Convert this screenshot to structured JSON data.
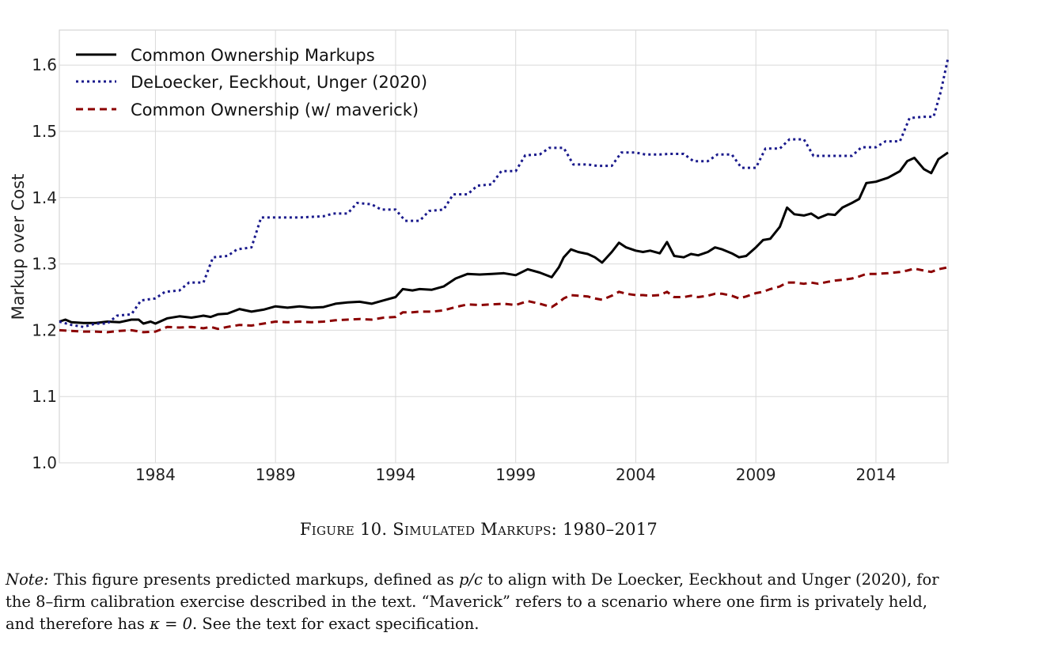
{
  "chart_data": {
    "type": "line",
    "title": "",
    "xlabel": "",
    "ylabel": "Markup over Cost",
    "xlim": [
      1980,
      2017
    ],
    "ylim": [
      1.0,
      1.63
    ],
    "x_ticks": [
      "1984",
      "1989",
      "1994",
      "1999",
      "2004",
      "2009",
      "2014"
    ],
    "y_ticks": [
      "1.0",
      "1.1",
      "1.2",
      "1.3",
      "1.4",
      "1.5",
      "1.6"
    ],
    "grid": true,
    "legend_position": "top-left",
    "series": [
      {
        "name": "Common Ownership Markups",
        "color": "#000000",
        "style": "solid",
        "points": [
          [
            1980,
            1.213
          ],
          [
            1980.25,
            1.216
          ],
          [
            1980.5,
            1.212
          ],
          [
            1981,
            1.211
          ],
          [
            1981.5,
            1.211
          ],
          [
            1982,
            1.213
          ],
          [
            1982.5,
            1.212
          ],
          [
            1983,
            1.216
          ],
          [
            1983.3,
            1.216
          ],
          [
            1983.5,
            1.21
          ],
          [
            1983.8,
            1.213
          ],
          [
            1984,
            1.21
          ],
          [
            1984.5,
            1.218
          ],
          [
            1985,
            1.221
          ],
          [
            1985.5,
            1.219
          ],
          [
            1986,
            1.222
          ],
          [
            1986.3,
            1.22
          ],
          [
            1986.6,
            1.224
          ],
          [
            1987,
            1.225
          ],
          [
            1987.5,
            1.232
          ],
          [
            1988,
            1.228
          ],
          [
            1988.5,
            1.231
          ],
          [
            1989,
            1.236
          ],
          [
            1989.5,
            1.234
          ],
          [
            1990,
            1.236
          ],
          [
            1990.5,
            1.234
          ],
          [
            1991,
            1.235
          ],
          [
            1991.5,
            1.24
          ],
          [
            1992,
            1.242
          ],
          [
            1992.5,
            1.243
          ],
          [
            1993,
            1.24
          ],
          [
            1993.5,
            1.245
          ],
          [
            1994,
            1.25
          ],
          [
            1994.3,
            1.262
          ],
          [
            1994.7,
            1.26
          ],
          [
            1995,
            1.262
          ],
          [
            1995.5,
            1.261
          ],
          [
            1996,
            1.266
          ],
          [
            1996.5,
            1.278
          ],
          [
            1997,
            1.285
          ],
          [
            1997.5,
            1.284
          ],
          [
            1998,
            1.285
          ],
          [
            1998.5,
            1.286
          ],
          [
            1999,
            1.283
          ],
          [
            1999.5,
            1.292
          ],
          [
            2000,
            1.287
          ],
          [
            2000.5,
            1.28
          ],
          [
            2000.8,
            1.295
          ],
          [
            2001,
            1.31
          ],
          [
            2001.3,
            1.322
          ],
          [
            2001.6,
            1.318
          ],
          [
            2002,
            1.315
          ],
          [
            2002.3,
            1.31
          ],
          [
            2002.6,
            1.302
          ],
          [
            2003,
            1.318
          ],
          [
            2003.3,
            1.332
          ],
          [
            2003.6,
            1.325
          ],
          [
            2004,
            1.32
          ],
          [
            2004.3,
            1.318
          ],
          [
            2004.6,
            1.32
          ],
          [
            2005,
            1.316
          ],
          [
            2005.3,
            1.333
          ],
          [
            2005.6,
            1.312
          ],
          [
            2006,
            1.31
          ],
          [
            2006.3,
            1.315
          ],
          [
            2006.6,
            1.313
          ],
          [
            2007,
            1.318
          ],
          [
            2007.3,
            1.325
          ],
          [
            2007.6,
            1.322
          ],
          [
            2008,
            1.316
          ],
          [
            2008.3,
            1.31
          ],
          [
            2008.6,
            1.312
          ],
          [
            2009,
            1.325
          ],
          [
            2009.3,
            1.336
          ],
          [
            2009.6,
            1.338
          ],
          [
            2010,
            1.356
          ],
          [
            2010.3,
            1.385
          ],
          [
            2010.6,
            1.375
          ],
          [
            2011,
            1.373
          ],
          [
            2011.3,
            1.376
          ],
          [
            2011.6,
            1.369
          ],
          [
            2012,
            1.375
          ],
          [
            2012.3,
            1.374
          ],
          [
            2012.6,
            1.385
          ],
          [
            2013,
            1.392
          ],
          [
            2013.3,
            1.398
          ],
          [
            2013.6,
            1.422
          ],
          [
            2014,
            1.424
          ],
          [
            2014.5,
            1.43
          ],
          [
            2015,
            1.44
          ],
          [
            2015.3,
            1.455
          ],
          [
            2015.6,
            1.46
          ],
          [
            2016,
            1.443
          ],
          [
            2016.3,
            1.437
          ],
          [
            2016.6,
            1.458
          ],
          [
            2017,
            1.468
          ]
        ]
      },
      {
        "name": "DeLoecker, Eeckhout, Unger (2020)",
        "color": "#1a1a8c",
        "style": "dotted",
        "points": [
          [
            1980,
            1.213
          ],
          [
            1980.5,
            1.208
          ],
          [
            1981,
            1.205
          ],
          [
            1981.5,
            1.21
          ],
          [
            1982,
            1.21
          ],
          [
            1982.4,
            1.222
          ],
          [
            1983,
            1.224
          ],
          [
            1983.4,
            1.245
          ],
          [
            1984,
            1.248
          ],
          [
            1984.4,
            1.258
          ],
          [
            1985,
            1.26
          ],
          [
            1985.4,
            1.272
          ],
          [
            1986,
            1.272
          ],
          [
            1986.4,
            1.31
          ],
          [
            1987,
            1.312
          ],
          [
            1987.4,
            1.322
          ],
          [
            1988,
            1.325
          ],
          [
            1988.4,
            1.37
          ],
          [
            1989,
            1.37
          ],
          [
            1990,
            1.37
          ],
          [
            1991,
            1.372
          ],
          [
            1991.4,
            1.376
          ],
          [
            1992,
            1.376
          ],
          [
            1992.4,
            1.392
          ],
          [
            1993,
            1.39
          ],
          [
            1993.4,
            1.382
          ],
          [
            1994,
            1.382
          ],
          [
            1994.4,
            1.365
          ],
          [
            1995,
            1.365
          ],
          [
            1995.4,
            1.38
          ],
          [
            1996,
            1.382
          ],
          [
            1996.4,
            1.405
          ],
          [
            1997,
            1.405
          ],
          [
            1997.4,
            1.418
          ],
          [
            1998,
            1.42
          ],
          [
            1998.4,
            1.44
          ],
          [
            1999,
            1.44
          ],
          [
            1999.4,
            1.464
          ],
          [
            2000,
            1.465
          ],
          [
            2000.4,
            1.475
          ],
          [
            2001,
            1.475
          ],
          [
            2001.4,
            1.45
          ],
          [
            2002,
            1.45
          ],
          [
            2002.4,
            1.448
          ],
          [
            2003,
            1.448
          ],
          [
            2003.4,
            1.468
          ],
          [
            2004,
            1.468
          ],
          [
            2004.4,
            1.465
          ],
          [
            2005,
            1.465
          ],
          [
            2005.4,
            1.466
          ],
          [
            2006,
            1.466
          ],
          [
            2006.4,
            1.455
          ],
          [
            2007,
            1.455
          ],
          [
            2007.4,
            1.465
          ],
          [
            2008,
            1.465
          ],
          [
            2008.4,
            1.445
          ],
          [
            2009,
            1.445
          ],
          [
            2009.4,
            1.474
          ],
          [
            2010,
            1.474
          ],
          [
            2010.4,
            1.488
          ],
          [
            2011,
            1.488
          ],
          [
            2011.4,
            1.463
          ],
          [
            2012,
            1.463
          ],
          [
            2013,
            1.463
          ],
          [
            2013.4,
            1.476
          ],
          [
            2014,
            1.476
          ],
          [
            2014.4,
            1.485
          ],
          [
            2015,
            1.485
          ],
          [
            2015.4,
            1.52
          ],
          [
            2016,
            1.522
          ],
          [
            2016.4,
            1.522
          ],
          [
            2016.7,
            1.56
          ],
          [
            2017,
            1.61
          ]
        ]
      },
      {
        "name": "Common Ownership (w/ maverick)",
        "color": "#8b0000",
        "style": "dashed",
        "points": [
          [
            1980,
            1.2
          ],
          [
            1980.5,
            1.199
          ],
          [
            1981,
            1.198
          ],
          [
            1981.5,
            1.198
          ],
          [
            1982,
            1.197
          ],
          [
            1982.5,
            1.199
          ],
          [
            1983,
            1.2
          ],
          [
            1983.5,
            1.197
          ],
          [
            1984,
            1.198
          ],
          [
            1984.5,
            1.205
          ],
          [
            1985,
            1.204
          ],
          [
            1985.5,
            1.205
          ],
          [
            1986,
            1.203
          ],
          [
            1986.3,
            1.205
          ],
          [
            1986.6,
            1.202
          ],
          [
            1987,
            1.205
          ],
          [
            1987.5,
            1.208
          ],
          [
            1988,
            1.207
          ],
          [
            1988.5,
            1.21
          ],
          [
            1989,
            1.213
          ],
          [
            1989.5,
            1.212
          ],
          [
            1990,
            1.213
          ],
          [
            1990.5,
            1.212
          ],
          [
            1991,
            1.213
          ],
          [
            1991.5,
            1.215
          ],
          [
            1992,
            1.216
          ],
          [
            1992.5,
            1.217
          ],
          [
            1993,
            1.216
          ],
          [
            1993.5,
            1.219
          ],
          [
            1994,
            1.22
          ],
          [
            1994.3,
            1.227
          ],
          [
            1994.7,
            1.227
          ],
          [
            1995,
            1.228
          ],
          [
            1995.5,
            1.228
          ],
          [
            1996,
            1.23
          ],
          [
            1996.5,
            1.235
          ],
          [
            1997,
            1.239
          ],
          [
            1997.5,
            1.238
          ],
          [
            1998,
            1.239
          ],
          [
            1998.5,
            1.24
          ],
          [
            1999,
            1.238
          ],
          [
            1999.5,
            1.244
          ],
          [
            2000,
            1.24
          ],
          [
            2000.5,
            1.235
          ],
          [
            2000.8,
            1.242
          ],
          [
            2001,
            1.248
          ],
          [
            2001.3,
            1.253
          ],
          [
            2001.6,
            1.252
          ],
          [
            2002,
            1.251
          ],
          [
            2002.3,
            1.248
          ],
          [
            2002.6,
            1.246
          ],
          [
            2003,
            1.252
          ],
          [
            2003.3,
            1.258
          ],
          [
            2003.6,
            1.255
          ],
          [
            2004,
            1.253
          ],
          [
            2004.3,
            1.253
          ],
          [
            2004.6,
            1.252
          ],
          [
            2005,
            1.253
          ],
          [
            2005.3,
            1.258
          ],
          [
            2005.6,
            1.25
          ],
          [
            2006,
            1.25
          ],
          [
            2006.3,
            1.252
          ],
          [
            2006.6,
            1.25
          ],
          [
            2007,
            1.252
          ],
          [
            2007.3,
            1.255
          ],
          [
            2007.6,
            1.255
          ],
          [
            2008,
            1.252
          ],
          [
            2008.3,
            1.248
          ],
          [
            2008.6,
            1.251
          ],
          [
            2009,
            1.256
          ],
          [
            2009.3,
            1.258
          ],
          [
            2009.6,
            1.262
          ],
          [
            2010,
            1.266
          ],
          [
            2010.3,
            1.272
          ],
          [
            2010.6,
            1.272
          ],
          [
            2011,
            1.27
          ],
          [
            2011.3,
            1.272
          ],
          [
            2011.6,
            1.27
          ],
          [
            2012,
            1.273
          ],
          [
            2012.3,
            1.275
          ],
          [
            2012.6,
            1.276
          ],
          [
            2013,
            1.278
          ],
          [
            2013.3,
            1.281
          ],
          [
            2013.6,
            1.285
          ],
          [
            2014,
            1.285
          ],
          [
            2014.5,
            1.286
          ],
          [
            2015,
            1.288
          ],
          [
            2015.3,
            1.29
          ],
          [
            2015.6,
            1.293
          ],
          [
            2016,
            1.29
          ],
          [
            2016.3,
            1.288
          ],
          [
            2016.6,
            1.292
          ],
          [
            2017,
            1.295
          ]
        ]
      }
    ]
  },
  "caption": {
    "text": "Figure 10. Simulated Markups: 1980–2017"
  },
  "note": {
    "label": "Note:",
    "part1": " This figure presents predicted markups, defined as ",
    "formula": "p/c",
    "part2": " to align with De Loecker, Eeckhout and Unger (2020), for the 8–firm calibration exercise described in the text. “Maverick” refers to a scenario where one firm is privately held, and therefore has ",
    "kappa": "κ = 0",
    "part3": ". See the text for exact specification."
  }
}
